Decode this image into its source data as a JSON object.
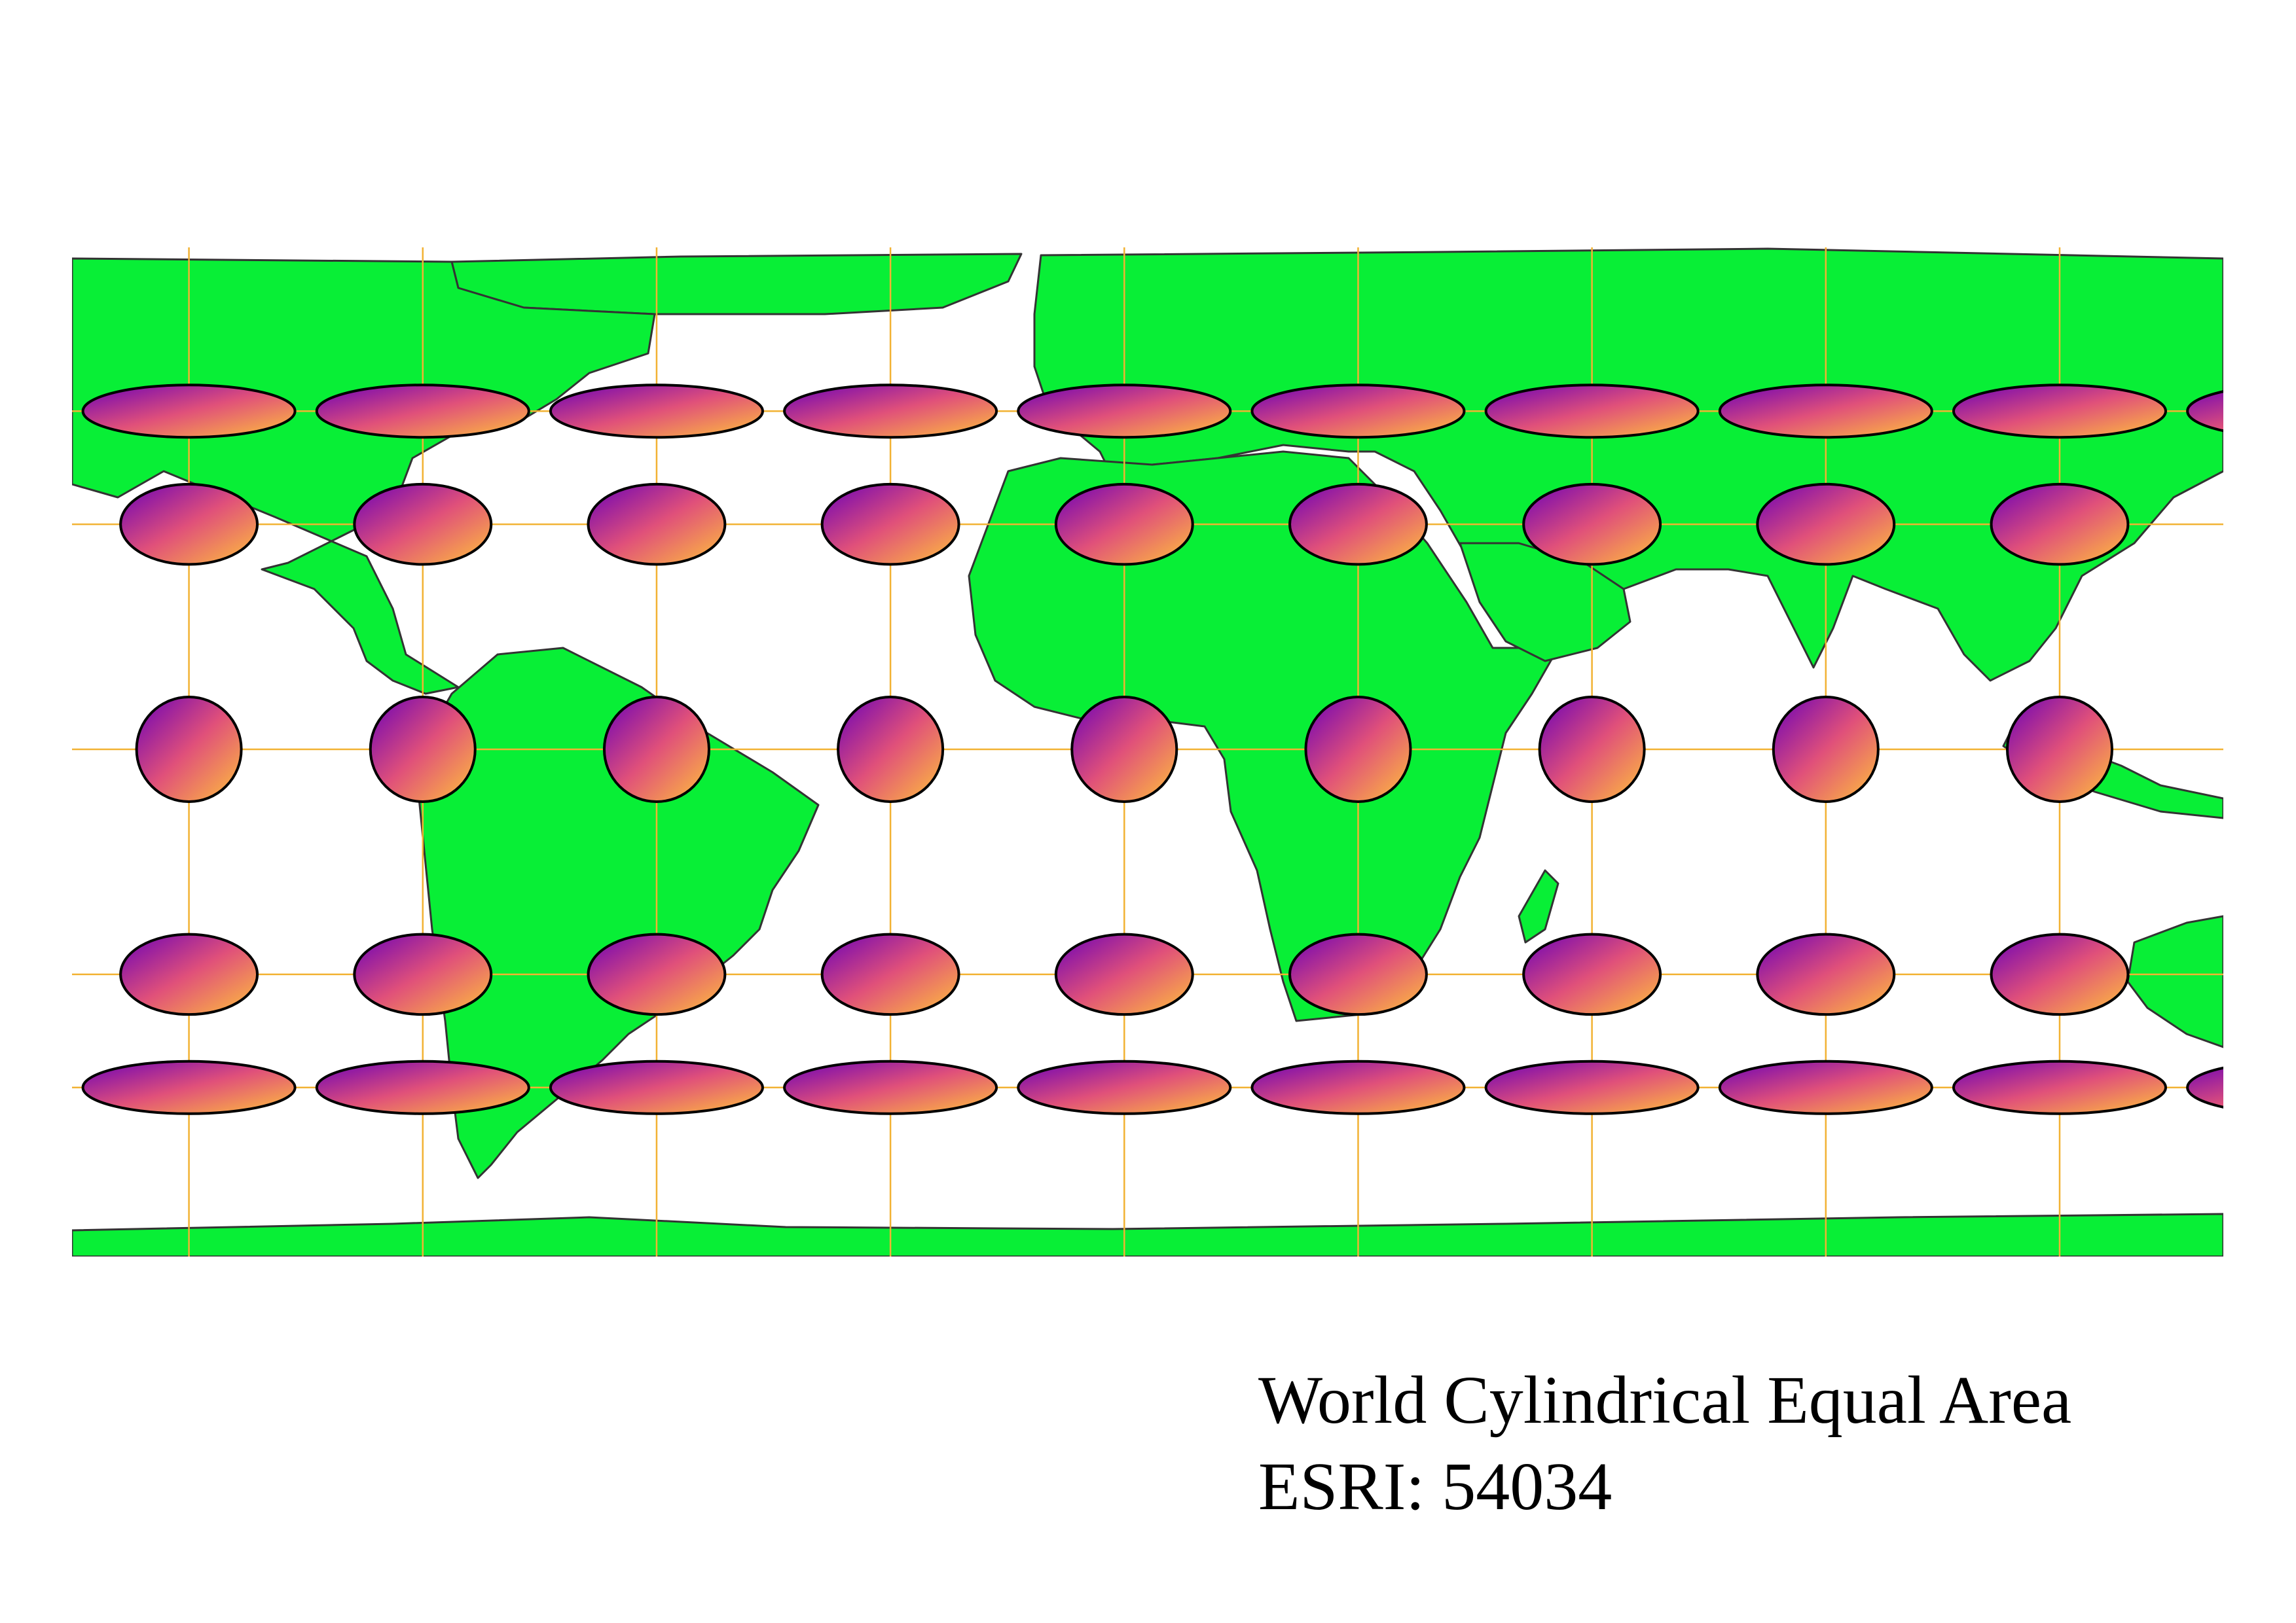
{
  "map": {
    "projection_name": "World Cylindrical Equal Area",
    "projection_code": "ESRI: 54034",
    "colors": {
      "land": "#08ef36",
      "border": "#333333",
      "ocean": "#ffffff",
      "graticule": "#f2b233",
      "ellipse_gradient_start": "#6a00b8",
      "ellipse_gradient_mid": "#e0507a",
      "ellipse_gradient_end": "#ffc23a",
      "ellipse_outline": "#000000"
    },
    "graticule": {
      "meridians_deg": [
        -180,
        -140,
        -100,
        -60,
        -20,
        20,
        60,
        100,
        140,
        180
      ],
      "parallels_deg": [
        75,
        40,
        0,
        -40,
        -75
      ]
    },
    "tissot_indicatrix": {
      "longitudes_deg": [
        -180,
        -140,
        -100,
        -60,
        -20,
        20,
        60,
        100,
        140,
        180
      ],
      "latitudes_deg": [
        75,
        40,
        0,
        -40,
        -75
      ]
    }
  }
}
